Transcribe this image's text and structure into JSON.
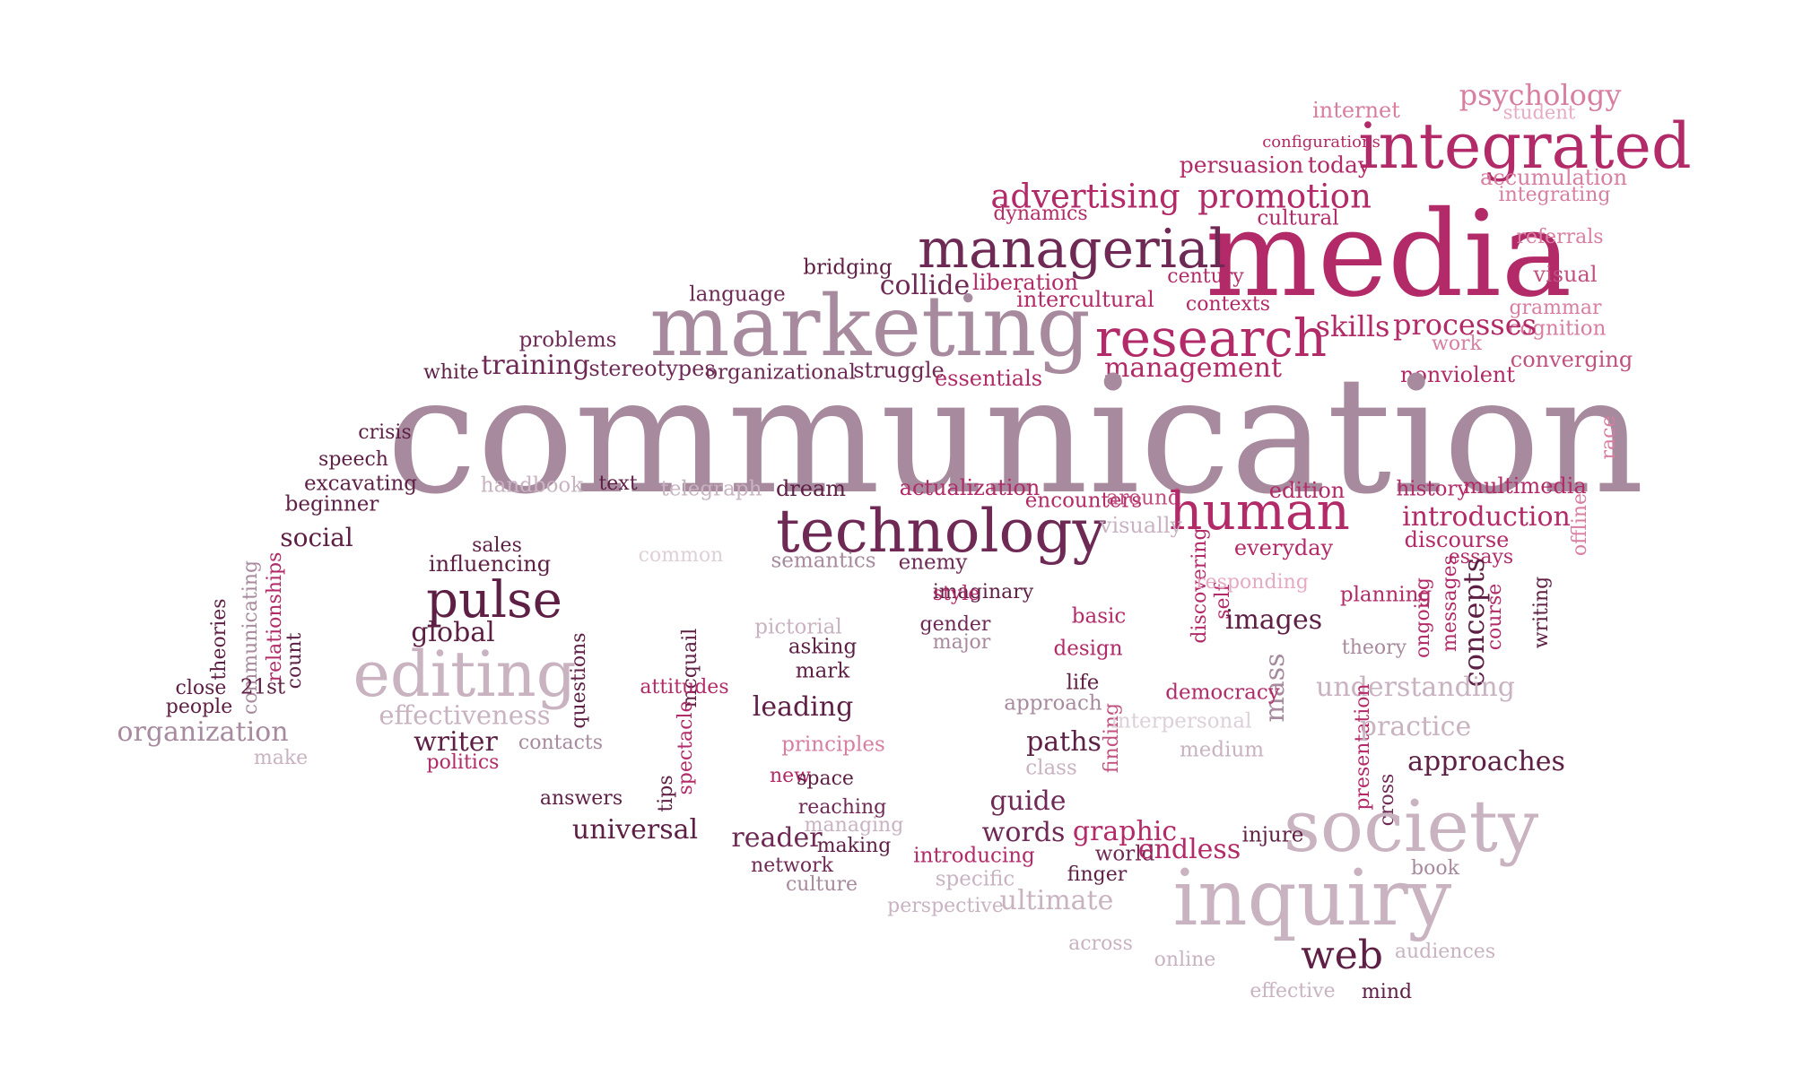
{
  "palette": {
    "dark": "#5e1f45",
    "plum": "#6e2a55",
    "magenta": "#b22a68",
    "rose": "#c0517f",
    "pink": "#d77ea1",
    "pinkLight": "#e6aac3",
    "mauve": "#a78a9e",
    "mauveLight": "#c9b3c1",
    "pale": "#ddd0d8"
  },
  "words": [
    {
      "t": "psychology",
      "c": "pink"
    },
    {
      "t": "internet",
      "c": "pink"
    },
    {
      "t": "student",
      "c": "pinkLight"
    },
    {
      "t": "configurations",
      "c": "magenta"
    },
    {
      "t": "integrated",
      "c": "magenta"
    },
    {
      "t": "persuasion",
      "c": "magenta"
    },
    {
      "t": "today",
      "c": "magenta"
    },
    {
      "t": "accumulation",
      "c": "pink"
    },
    {
      "t": "integrating",
      "c": "pink"
    },
    {
      "t": "cultural",
      "c": "magenta"
    },
    {
      "t": "dynamics",
      "c": "magenta"
    },
    {
      "t": "advertising",
      "c": "magenta"
    },
    {
      "t": "promotion",
      "c": "magenta"
    },
    {
      "t": "media",
      "c": "magenta"
    },
    {
      "t": "referrals",
      "c": "pink"
    },
    {
      "t": "visual",
      "c": "rose"
    },
    {
      "t": "grammar",
      "c": "pink"
    },
    {
      "t": "cognition",
      "c": "pink"
    },
    {
      "t": "bridging",
      "c": "dark"
    },
    {
      "t": "managerial",
      "c": "plum"
    },
    {
      "t": "collide",
      "c": "plum"
    },
    {
      "t": "liberation",
      "c": "magenta"
    },
    {
      "t": "century",
      "c": "magenta"
    },
    {
      "t": "language",
      "c": "plum"
    },
    {
      "t": "intercultural",
      "c": "magenta"
    },
    {
      "t": "contexts",
      "c": "magenta"
    },
    {
      "t": "marketing",
      "c": "mauve"
    },
    {
      "t": "research",
      "c": "magenta"
    },
    {
      "t": "skills",
      "c": "magenta"
    },
    {
      "t": "processes",
      "c": "magenta"
    },
    {
      "t": "work",
      "c": "pink"
    },
    {
      "t": "problems",
      "c": "plum"
    },
    {
      "t": "converging",
      "c": "rose"
    },
    {
      "t": "training",
      "c": "plum"
    },
    {
      "t": "stereotypes",
      "c": "plum"
    },
    {
      "t": "white",
      "c": "dark"
    },
    {
      "t": "organizational",
      "c": "plum"
    },
    {
      "t": "struggle",
      "c": "plum"
    },
    {
      "t": "essentials",
      "c": "magenta"
    },
    {
      "t": "management",
      "c": "magenta"
    },
    {
      "t": "nonviolent",
      "c": "magenta"
    },
    {
      "t": "communication",
      "c": "mauve"
    },
    {
      "t": "crisis",
      "c": "dark"
    },
    {
      "t": "race",
      "c": "pink"
    },
    {
      "t": "speech",
      "c": "dark"
    },
    {
      "t": "excavating",
      "c": "dark"
    },
    {
      "t": "handbook",
      "c": "mauveLight"
    },
    {
      "t": "text",
      "c": "dark"
    },
    {
      "t": "telegraph",
      "c": "mauveLight"
    },
    {
      "t": "dream",
      "c": "dark"
    },
    {
      "t": "actualization",
      "c": "magenta"
    },
    {
      "t": "edition",
      "c": "magenta"
    },
    {
      "t": "history",
      "c": "magenta"
    },
    {
      "t": "multimedia",
      "c": "magenta"
    },
    {
      "t": "beginner",
      "c": "dark"
    },
    {
      "t": "encounters",
      "c": "magenta"
    },
    {
      "t": "around",
      "c": "rose"
    },
    {
      "t": "human",
      "c": "magenta"
    },
    {
      "t": "offline",
      "c": "pink"
    },
    {
      "t": "introduction",
      "c": "magenta"
    },
    {
      "t": "technology",
      "c": "plum"
    },
    {
      "t": "visually",
      "c": "mauveLight"
    },
    {
      "t": "social",
      "c": "dark"
    },
    {
      "t": "discourse",
      "c": "magenta"
    },
    {
      "t": "sales",
      "c": "dark"
    },
    {
      "t": "everyday",
      "c": "magenta"
    },
    {
      "t": "common",
      "c": "pale"
    },
    {
      "t": "semantics",
      "c": "mauve"
    },
    {
      "t": "enemy",
      "c": "plum"
    },
    {
      "t": "essays",
      "c": "magenta"
    },
    {
      "t": "influencing",
      "c": "dark"
    },
    {
      "t": "imaginary",
      "c": "dark"
    },
    {
      "t": "relationships",
      "c": "magenta"
    },
    {
      "t": "discovering",
      "c": "magenta"
    },
    {
      "t": "self",
      "c": "magenta"
    },
    {
      "t": "responding",
      "c": "pinkLight"
    },
    {
      "t": "writing",
      "c": "dark"
    },
    {
      "t": "pulse",
      "c": "dark"
    },
    {
      "t": "style",
      "c": "magenta"
    },
    {
      "t": "planning",
      "c": "magenta"
    },
    {
      "t": "ongoing",
      "c": "magenta"
    },
    {
      "t": "messages",
      "c": "magenta"
    },
    {
      "t": "course",
      "c": "magenta"
    },
    {
      "t": "concepts",
      "c": "dark"
    },
    {
      "t": "theories",
      "c": "dark"
    },
    {
      "t": "communicating",
      "c": "mauve"
    },
    {
      "t": "count",
      "c": "dark"
    },
    {
      "t": "basic",
      "c": "magenta"
    },
    {
      "t": "images",
      "c": "dark"
    },
    {
      "t": "global",
      "c": "dark"
    },
    {
      "t": "pictorial",
      "c": "mauveLight"
    },
    {
      "t": "gender",
      "c": "plum"
    },
    {
      "t": "major",
      "c": "mauve"
    },
    {
      "t": "mcquail",
      "c": "dark"
    },
    {
      "t": "asking",
      "c": "dark"
    },
    {
      "t": "design",
      "c": "magenta"
    },
    {
      "t": "theory",
      "c": "mauve"
    },
    {
      "t": "mass",
      "c": "mauve"
    },
    {
      "t": "editing",
      "c": "mauveLight"
    },
    {
      "t": "questions",
      "c": "dark"
    },
    {
      "t": "mark",
      "c": "dark"
    },
    {
      "t": "life",
      "c": "dark"
    },
    {
      "t": "close",
      "c": "dark"
    },
    {
      "t": "21st",
      "c": "dark"
    },
    {
      "t": "attitudes",
      "c": "magenta"
    },
    {
      "t": "democracy",
      "c": "magenta"
    },
    {
      "t": "understanding",
      "c": "mauveLight"
    },
    {
      "t": "people",
      "c": "dark"
    },
    {
      "t": "leading",
      "c": "dark"
    },
    {
      "t": "approach",
      "c": "mauve"
    },
    {
      "t": "effectiveness",
      "c": "mauveLight"
    },
    {
      "t": "finding",
      "c": "rose"
    },
    {
      "t": "interpersonal",
      "c": "pale"
    },
    {
      "t": "organization",
      "c": "mauve"
    },
    {
      "t": "spectacle",
      "c": "magenta"
    },
    {
      "t": "presentation",
      "c": "magenta"
    },
    {
      "t": "practice",
      "c": "mauveLight"
    },
    {
      "t": "writer",
      "c": "dark"
    },
    {
      "t": "paths",
      "c": "dark"
    },
    {
      "t": "contacts",
      "c": "mauve"
    },
    {
      "t": "principles",
      "c": "pink"
    },
    {
      "t": "medium",
      "c": "mauveLight"
    },
    {
      "t": "make",
      "c": "mauveLight"
    },
    {
      "t": "politics",
      "c": "magenta"
    },
    {
      "t": "approaches",
      "c": "dark"
    },
    {
      "t": "class",
      "c": "mauveLight"
    },
    {
      "t": "new",
      "c": "magenta"
    },
    {
      "t": "cross",
      "c": "plum"
    },
    {
      "t": "tips",
      "c": "dark"
    },
    {
      "t": "space",
      "c": "dark"
    },
    {
      "t": "answers",
      "c": "dark"
    },
    {
      "t": "reaching",
      "c": "plum"
    },
    {
      "t": "guide",
      "c": "plum"
    },
    {
      "t": "society",
      "c": "mauveLight"
    },
    {
      "t": "universal",
      "c": "dark"
    },
    {
      "t": "managing",
      "c": "mauveLight"
    },
    {
      "t": "reader",
      "c": "plum"
    },
    {
      "t": "words",
      "c": "plum"
    },
    {
      "t": "graphic",
      "c": "magenta"
    },
    {
      "t": "injure",
      "c": "dark"
    },
    {
      "t": "making",
      "c": "dark"
    },
    {
      "t": "introducing",
      "c": "magenta"
    },
    {
      "t": "world",
      "c": "plum"
    },
    {
      "t": "endless",
      "c": "magenta"
    },
    {
      "t": "book",
      "c": "mauve"
    },
    {
      "t": "network",
      "c": "plum"
    },
    {
      "t": "finger",
      "c": "dark"
    },
    {
      "t": "specific",
      "c": "mauveLight"
    },
    {
      "t": "culture",
      "c": "mauve"
    },
    {
      "t": "inquiry",
      "c": "mauveLight"
    },
    {
      "t": "perspective",
      "c": "mauveLight"
    },
    {
      "t": "ultimate",
      "c": "mauveLight"
    },
    {
      "t": "across",
      "c": "mauveLight"
    },
    {
      "t": "web",
      "c": "dark"
    },
    {
      "t": "audiences",
      "c": "mauveLight"
    },
    {
      "t": "online",
      "c": "mauveLight"
    },
    {
      "t": "effective",
      "c": "mauveLight"
    },
    {
      "t": "mind",
      "c": "dark"
    }
  ]
}
